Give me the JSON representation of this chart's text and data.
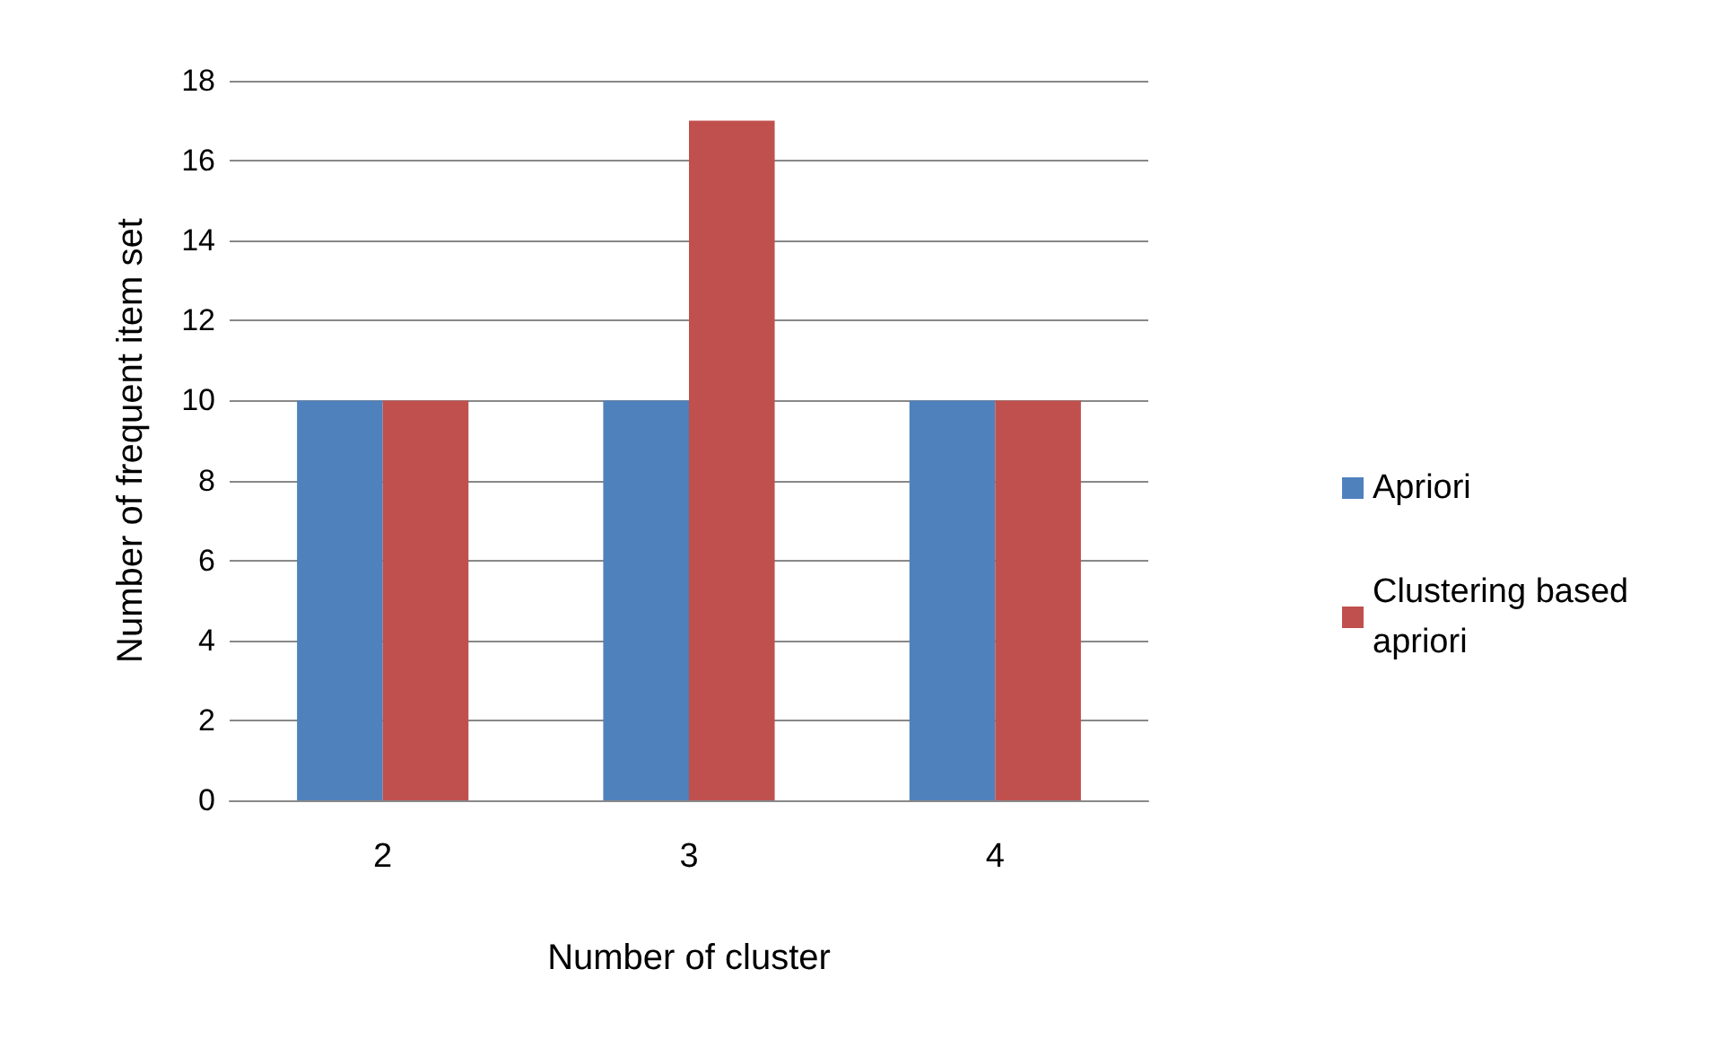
{
  "chart_data": {
    "type": "bar",
    "categories": [
      "2",
      "3",
      "4"
    ],
    "series": [
      {
        "name": "Apriori",
        "color": "#4f81bd",
        "values": [
          10,
          10,
          10
        ]
      },
      {
        "name": "Clustering based apriori",
        "color": "#c0504d",
        "values": [
          10,
          17,
          10
        ]
      }
    ],
    "xlabel": "Number of cluster",
    "ylabel": "Number of frequent item set",
    "ylim": [
      0,
      18
    ],
    "yticks": [
      0,
      2,
      4,
      6,
      8,
      10,
      12,
      14,
      16,
      18
    ],
    "grid": "y",
    "legend": "right"
  }
}
